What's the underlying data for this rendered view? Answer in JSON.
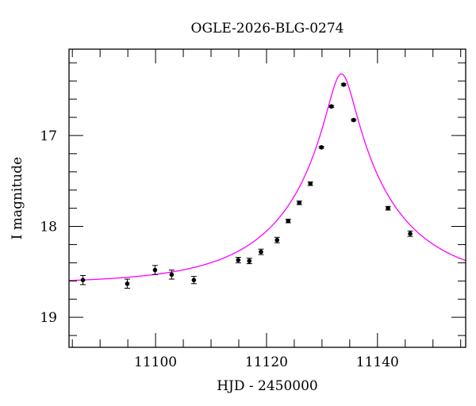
{
  "chart_data": {
    "type": "scatter",
    "title": "OGLE-2026-BLG-0274",
    "xlabel": "HJD - 2450000",
    "ylabel": "I magnitude",
    "xlim": [
      11084.4,
      11155.9
    ],
    "ylim": [
      19.33,
      16.05
    ],
    "y_inverted": true,
    "grid": false,
    "legend": null,
    "x_major_ticks": [
      11100,
      11120,
      11140
    ],
    "x_tick_labels": [
      "11100",
      "11120",
      "11140"
    ],
    "x_minor_step": 5,
    "y_major_ticks": [
      17,
      18,
      19
    ],
    "y_tick_labels": [
      "17",
      "18",
      "19"
    ],
    "y_minor_step": 0.2,
    "series": [
      {
        "name": "observations",
        "type": "scatter",
        "color": "#000000",
        "x": [
          11086.9,
          11094.9,
          11099.9,
          11102.9,
          11106.9,
          11114.9,
          11116.9,
          11119.0,
          11121.9,
          11123.9,
          11125.9,
          11127.9,
          11129.9,
          11131.7,
          11133.9,
          11135.7,
          11141.9,
          11145.9
        ],
        "y": [
          18.59,
          18.63,
          18.48,
          18.53,
          18.59,
          18.37,
          18.38,
          18.28,
          18.15,
          17.94,
          17.74,
          17.53,
          17.13,
          16.68,
          16.44,
          16.83,
          17.8,
          18.08
        ],
        "yerr": [
          0.05,
          0.05,
          0.05,
          0.05,
          0.04,
          0.03,
          0.03,
          0.03,
          0.03,
          0.02,
          0.02,
          0.02,
          0.01,
          0.01,
          0.01,
          0.01,
          0.02,
          0.03
        ]
      },
      {
        "name": "model",
        "type": "line",
        "color": "#ff00ff",
        "model": "paczynski",
        "t0": 11133.5,
        "tE": 20.0,
        "u0": 0.12,
        "I_base": 18.63
      }
    ]
  }
}
